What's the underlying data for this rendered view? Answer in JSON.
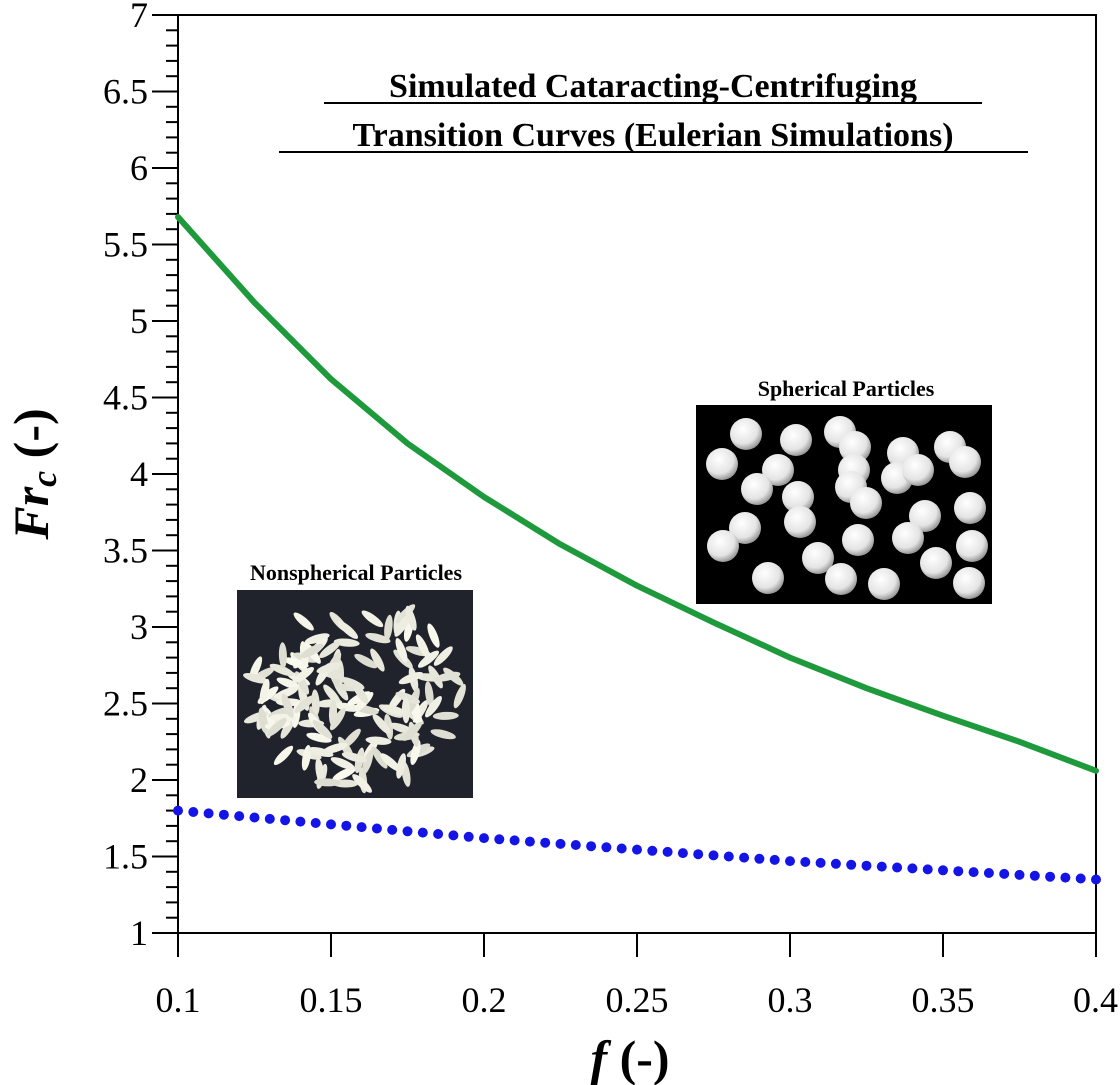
{
  "chart_data": {
    "type": "line",
    "title_lines": [
      "Simulated Cataracting-Centrifuging",
      "Transition Curves (Eulerian Simulations)"
    ],
    "xlabel": {
      "main": "f",
      "suffix": " (-)"
    },
    "ylabel": {
      "main": "Fr",
      "sub": "c",
      "suffix": " (-)"
    },
    "xlim": [
      0.1,
      0.4
    ],
    "ylim": [
      1,
      7
    ],
    "x_ticks": [
      0.1,
      0.15,
      0.2,
      0.25,
      0.3,
      0.35,
      0.4
    ],
    "x_tick_labels": [
      "0.1",
      "0.15",
      "0.2",
      "0.25",
      "0.3",
      "0.35",
      "0.4"
    ],
    "y_ticks": [
      1,
      1.5,
      2,
      2.5,
      3,
      3.5,
      4,
      4.5,
      5,
      5.5,
      6,
      6.5,
      7
    ],
    "y_tick_labels": [
      "1",
      "1.5",
      "2",
      "2.5",
      "3",
      "3.5",
      "4",
      "4.5",
      "5",
      "5.5",
      "6",
      "6.5",
      "7"
    ],
    "grid": false,
    "series": [
      {
        "style": "solid",
        "color": "#1e9a3c",
        "x": [
          0.1,
          0.125,
          0.15,
          0.175,
          0.2,
          0.225,
          0.25,
          0.275,
          0.3,
          0.325,
          0.35,
          0.375,
          0.4
        ],
        "y": [
          5.68,
          5.12,
          4.62,
          4.2,
          3.85,
          3.54,
          3.27,
          3.03,
          2.8,
          2.6,
          2.42,
          2.25,
          2.06
        ]
      },
      {
        "style": "dotted",
        "color": "#1414e6",
        "x": [
          0.1,
          0.2,
          0.3,
          0.4
        ],
        "y": [
          1.8,
          1.62,
          1.47,
          1.35
        ]
      }
    ],
    "annotations": [
      {
        "text": "Spherical Particles",
        "image": "spherical-particles-photo"
      },
      {
        "text": "Nonspherical Particles",
        "image": "nonspherical-particles-photo"
      }
    ]
  }
}
